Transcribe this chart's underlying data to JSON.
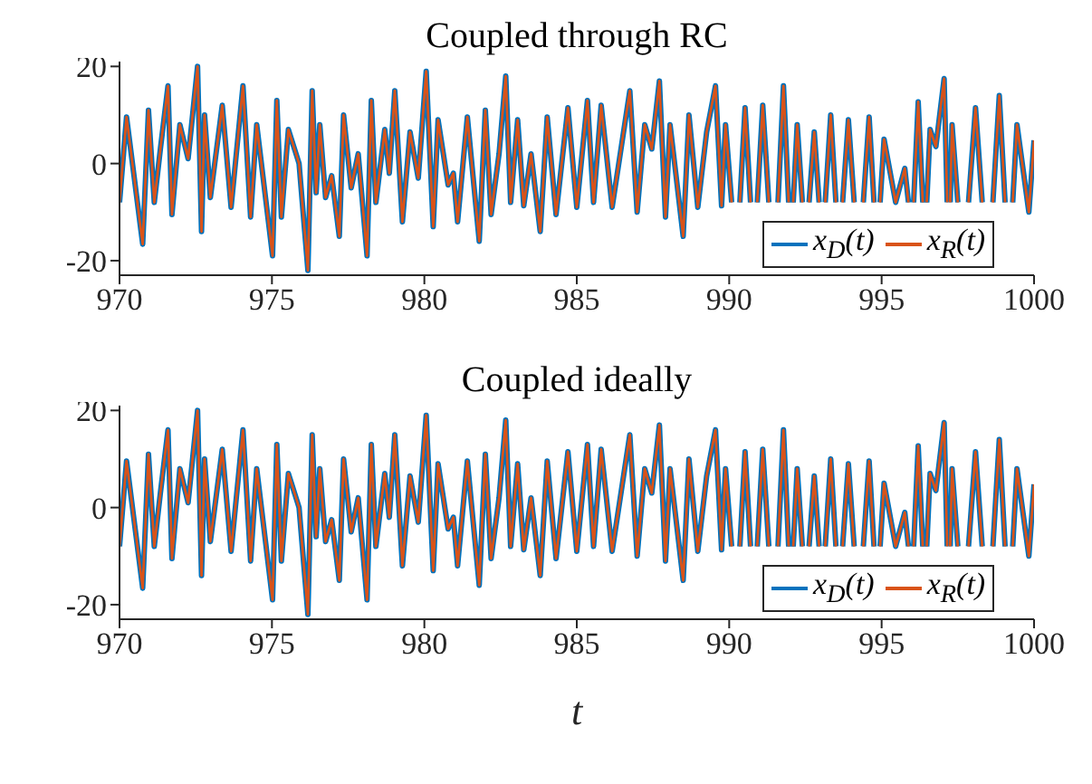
{
  "chart_data": [
    {
      "type": "line",
      "title": "Coupled through RC",
      "xlim": [
        970,
        1000
      ],
      "xticks": [
        970,
        975,
        980,
        985,
        990,
        995,
        1000
      ],
      "ylim": [
        -23,
        21
      ],
      "yticks": [
        -20,
        0,
        20
      ],
      "legend": "bottom right",
      "x": [
        970,
        970.23,
        970.76,
        970.95,
        971.14,
        971.34,
        971.59,
        971.72,
        971.98,
        972.25,
        972.56,
        972.69,
        972.79,
        972.98,
        973.37,
        973.66,
        974.05,
        974.3,
        974.5,
        975.02,
        975.16,
        975.31,
        975.54,
        975.89,
        976.18,
        976.32,
        976.45,
        976.57,
        976.76,
        976.96,
        977.21,
        977.35,
        977.6,
        977.83,
        978.12,
        978.26,
        978.41,
        978.7,
        978.85,
        979.03,
        979.28,
        979.53,
        979.8,
        980.06,
        980.29,
        980.45,
        980.78,
        980.95,
        981.09,
        981.41,
        981.8,
        982,
        982.19,
        982.45,
        982.67,
        982.83,
        983.06,
        983.26,
        983.5,
        983.8,
        984.03,
        984.32,
        984.71,
        985,
        985.35,
        985.55,
        985.8,
        986.16,
        986.74,
        986.98,
        987.23,
        987.46,
        987.71,
        987.91,
        988.06,
        988.49,
        988.68,
        988.97,
        989.26,
        989.55,
        989.75,
        989.88,
        990.08,
        990.2,
        990.35,
        990.52,
        990.7,
        990.8,
        990.92,
        991.1,
        991.3,
        991.45,
        991.6,
        991.78,
        991.95,
        992,
        992.1,
        992.23,
        992.4,
        992.5,
        992.62,
        992.79,
        992.95,
        993.05,
        993.15,
        993.33,
        993.5,
        993.6,
        993.72,
        993.91,
        994.1,
        994.25,
        994.4,
        994.59,
        994.75,
        994.85,
        994.95,
        995.08,
        995.46,
        995.76,
        995.88,
        995.95,
        996.05,
        996.2,
        996.35,
        996.42,
        996.48,
        996.59,
        996.78,
        997.05,
        997.15,
        997.2,
        997.25,
        997.31,
        997.5,
        997.65,
        997.85,
        998.08,
        998.3,
        998.45,
        998.65,
        998.86,
        999.05,
        999.15,
        999.3,
        999.44,
        999.83,
        1000
      ],
      "series": [
        {
          "name": "x$_{D}$(t)",
          "color": "#0072bd",
          "values": [
            -8,
            9.6,
            -16.6,
            11,
            -8,
            3,
            16,
            -10.5,
            8,
            1,
            20,
            -14,
            10,
            -7,
            12,
            -9,
            16,
            -11,
            8,
            -19,
            13,
            -11,
            7,
            0,
            -22,
            15,
            -6,
            8,
            -7,
            -2.5,
            -15,
            10,
            -5,
            2,
            -19,
            13,
            -8,
            7,
            -2,
            15,
            -12,
            6.5,
            -3,
            19,
            -13,
            9,
            -4.4,
            -2,
            -12,
            9.6,
            -16,
            11,
            -10.5,
            2,
            18,
            -8,
            9,
            -8.7,
            2,
            -14,
            9.6,
            -10.5,
            11.5,
            -9,
            13,
            -8,
            12,
            -9,
            15,
            -10,
            8,
            3,
            17,
            -11,
            8,
            -15,
            10,
            -9,
            6.5,
            16,
            -8.7,
            8,
            -8,
            null,
            -8,
            11.5,
            -8,
            null,
            -8,
            12,
            -8,
            null,
            -8,
            16,
            -8,
            null,
            -8,
            8,
            -8,
            null,
            -8,
            6.5,
            -8,
            null,
            -8,
            10,
            -8,
            null,
            -8,
            9,
            -8,
            null,
            -8,
            9.6,
            -8,
            null,
            -8,
            5,
            -8,
            -1,
            -8,
            null,
            -8,
            12.7,
            -8,
            null,
            -8,
            7,
            3.5,
            17.5,
            -8,
            null,
            -8,
            8,
            -8,
            null,
            -8,
            11.5,
            -8,
            null,
            -8,
            14,
            -8,
            null,
            -8,
            8,
            -10,
            4.8
          ]
        },
        {
          "name": "x$_{R}$(t)",
          "color": "#d95319",
          "values": [
            -8,
            9.6,
            -16.6,
            11,
            -8,
            3,
            16,
            -10.5,
            8,
            1,
            20,
            -14,
            10,
            -7,
            12,
            -9,
            16,
            -11,
            8,
            -19,
            13,
            -11,
            7,
            0,
            -22,
            15,
            -6,
            8,
            -7,
            -2.5,
            -15,
            10,
            -5,
            2,
            -19,
            13,
            -8,
            7,
            -2,
            15,
            -12,
            6.5,
            -3,
            19,
            -13,
            9,
            -4.4,
            -2,
            -12,
            9.6,
            -16,
            11,
            -10.5,
            2,
            18,
            -8,
            9,
            -8.7,
            2,
            -14,
            9.6,
            -10.5,
            11.5,
            -9,
            13,
            -8,
            12,
            -9,
            15,
            -10,
            8,
            3,
            17,
            -11,
            8,
            -15,
            10,
            -9,
            6.5,
            16,
            -8.7,
            8,
            -8,
            null,
            -8,
            11.5,
            -8,
            null,
            -8,
            12,
            -8,
            null,
            -8,
            16,
            -8,
            null,
            -8,
            8,
            -8,
            null,
            -8,
            6.5,
            -8,
            null,
            -8,
            10,
            -8,
            null,
            -8,
            9,
            -8,
            null,
            -8,
            9.6,
            -8,
            null,
            -8,
            5,
            -8,
            -1,
            -8,
            null,
            -8,
            12.7,
            -8,
            null,
            -8,
            7,
            3.5,
            17.5,
            -8,
            null,
            -8,
            8,
            -8,
            null,
            -8,
            11.5,
            -8,
            null,
            -8,
            14,
            -8,
            null,
            -8,
            8,
            -10,
            4.8
          ]
        }
      ]
    },
    {
      "type": "line",
      "title": "Coupled ideally",
      "xlabel": "t",
      "xlim": [
        970,
        1000
      ],
      "xticks": [
        970,
        975,
        980,
        985,
        990,
        995,
        1000
      ],
      "ylim": [
        -23,
        21
      ],
      "yticks": [
        -20,
        0,
        20
      ],
      "legend": "bottom right",
      "x": [
        970,
        970.23,
        970.76,
        970.95,
        971.14,
        971.34,
        971.59,
        971.72,
        971.98,
        972.25,
        972.56,
        972.69,
        972.79,
        972.98,
        973.37,
        973.66,
        974.05,
        974.3,
        974.5,
        975.02,
        975.16,
        975.31,
        975.54,
        975.89,
        976.18,
        976.32,
        976.45,
        976.57,
        976.76,
        976.96,
        977.21,
        977.35,
        977.6,
        977.83,
        978.12,
        978.26,
        978.41,
        978.7,
        978.85,
        979.03,
        979.28,
        979.53,
        979.8,
        980.06,
        980.29,
        980.45,
        980.78,
        980.95,
        981.09,
        981.41,
        981.8,
        982,
        982.19,
        982.45,
        982.67,
        982.83,
        983.06,
        983.26,
        983.5,
        983.8,
        984.03,
        984.32,
        984.71,
        985,
        985.35,
        985.55,
        985.8,
        986.16,
        986.74,
        986.98,
        987.23,
        987.46,
        987.71,
        987.91,
        988.06,
        988.49,
        988.68,
        988.97,
        989.26,
        989.55,
        989.75,
        989.88,
        990.08,
        990.2,
        990.35,
        990.52,
        990.7,
        990.8,
        990.92,
        991.1,
        991.3,
        991.45,
        991.6,
        991.78,
        991.95,
        992,
        992.1,
        992.23,
        992.4,
        992.5,
        992.62,
        992.79,
        992.95,
        993.05,
        993.15,
        993.33,
        993.5,
        993.6,
        993.72,
        993.91,
        994.1,
        994.25,
        994.4,
        994.59,
        994.75,
        994.85,
        994.95,
        995.08,
        995.46,
        995.76,
        995.88,
        995.95,
        996.05,
        996.2,
        996.35,
        996.42,
        996.48,
        996.59,
        996.78,
        997.05,
        997.15,
        997.2,
        997.25,
        997.31,
        997.5,
        997.65,
        997.85,
        998.08,
        998.3,
        998.45,
        998.65,
        998.86,
        999.05,
        999.15,
        999.3,
        999.44,
        999.83,
        1000
      ],
      "series": [
        {
          "name": "x$_{D}$(t)",
          "color": "#0072bd",
          "values": [
            -8,
            9.6,
            -16.6,
            11,
            -8,
            3,
            16,
            -10.5,
            8,
            1,
            20,
            -14,
            10,
            -7,
            12,
            -9,
            16,
            -11,
            8,
            -19,
            13,
            -11,
            7,
            0,
            -22,
            15,
            -6,
            8,
            -7,
            -2.5,
            -15,
            10,
            -5,
            2,
            -19,
            13,
            -8,
            7,
            -2,
            15,
            -12,
            6.5,
            -3,
            19,
            -13,
            9,
            -4.4,
            -2,
            -12,
            9.6,
            -16,
            11,
            -10.5,
            2,
            18,
            -8,
            9,
            -8.7,
            2,
            -14,
            9.6,
            -10.5,
            11.5,
            -9,
            13,
            -8,
            12,
            -9,
            15,
            -10,
            8,
            3,
            17,
            -11,
            8,
            -15,
            10,
            -9,
            6.5,
            16,
            -8.7,
            8,
            -8,
            null,
            -8,
            11.5,
            -8,
            null,
            -8,
            12,
            -8,
            null,
            -8,
            16,
            -8,
            null,
            -8,
            8,
            -8,
            null,
            -8,
            6.5,
            -8,
            null,
            -8,
            10,
            -8,
            null,
            -8,
            9,
            -8,
            null,
            -8,
            9.6,
            -8,
            null,
            -8,
            5,
            -8,
            -1,
            -8,
            null,
            -8,
            12.7,
            -8,
            null,
            -8,
            7,
            3.5,
            17.5,
            -8,
            null,
            -8,
            8,
            -8,
            null,
            -8,
            11.5,
            -8,
            null,
            -8,
            14,
            -8,
            null,
            -8,
            8,
            -10,
            4.8
          ]
        },
        {
          "name": "x$_{R}$(t)",
          "color": "#d95319",
          "values": [
            -8,
            9.6,
            -16.6,
            11,
            -8,
            3,
            16,
            -10.5,
            8,
            1,
            20,
            -14,
            10,
            -7,
            12,
            -9,
            16,
            -11,
            8,
            -19,
            13,
            -11,
            7,
            0,
            -22,
            15,
            -6,
            8,
            -7,
            -2.5,
            -15,
            10,
            -5,
            2,
            -19,
            13,
            -8,
            7,
            -2,
            15,
            -12,
            6.5,
            -3,
            19,
            -13,
            9,
            -4.4,
            -2,
            -12,
            9.6,
            -16,
            11,
            -10.5,
            2,
            18,
            -8,
            9,
            -8.7,
            2,
            -14,
            9.6,
            -10.5,
            11.5,
            -9,
            13,
            -8,
            12,
            -9,
            15,
            -10,
            8,
            3,
            17,
            -11,
            8,
            -15,
            10,
            -9,
            6.5,
            16,
            -8.7,
            8,
            -8,
            null,
            -8,
            11.5,
            -8,
            null,
            -8,
            12,
            -8,
            null,
            -8,
            16,
            -8,
            null,
            -8,
            8,
            -8,
            null,
            -8,
            6.5,
            -8,
            null,
            -8,
            10,
            -8,
            null,
            -8,
            9,
            -8,
            null,
            -8,
            9.6,
            -8,
            null,
            -8,
            5,
            -8,
            -1,
            -8,
            null,
            -8,
            12.7,
            -8,
            null,
            -8,
            7,
            3.5,
            17.5,
            -8,
            null,
            -8,
            8,
            -8,
            null,
            -8,
            11.5,
            -8,
            null,
            -8,
            14,
            -8,
            null,
            -8,
            8,
            -10,
            4.8
          ]
        }
      ]
    }
  ]
}
